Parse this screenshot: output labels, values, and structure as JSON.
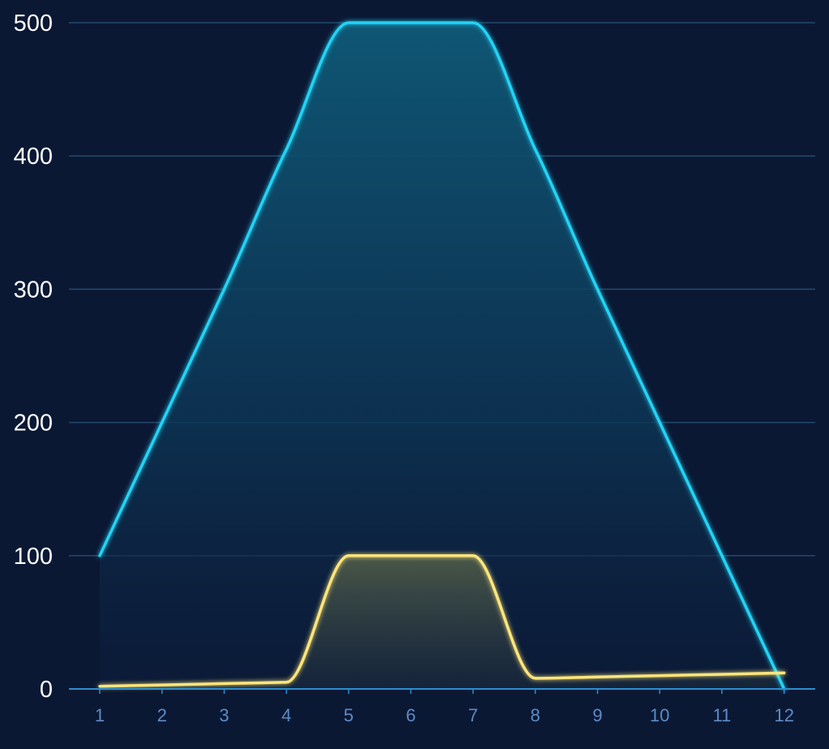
{
  "chart_data": {
    "type": "area",
    "categories": [
      "1",
      "2",
      "3",
      "4",
      "5",
      "6",
      "7",
      "8",
      "9",
      "10",
      "11",
      "12"
    ],
    "series": [
      {
        "values": [
          100,
          200,
          300,
          405,
          500,
          500,
          500,
          405,
          300,
          200,
          100,
          0
        ],
        "color": "#22d3f5"
      },
      {
        "values": [
          2,
          3,
          4,
          5,
          100,
          100,
          100,
          8,
          9,
          10,
          11,
          12
        ],
        "color": "#fde57a"
      }
    ],
    "yticks": [
      "0",
      "100",
      "200",
      "300",
      "400",
      "500"
    ],
    "ylim": [
      0,
      500
    ],
    "grid": true,
    "legend": "none",
    "colors": {
      "background": "#0b1834",
      "grid": "#234a6c",
      "axis": "#2c8fd0",
      "ytick_text": "#ffffff",
      "xtick_text": "#5c8bc6"
    }
  }
}
